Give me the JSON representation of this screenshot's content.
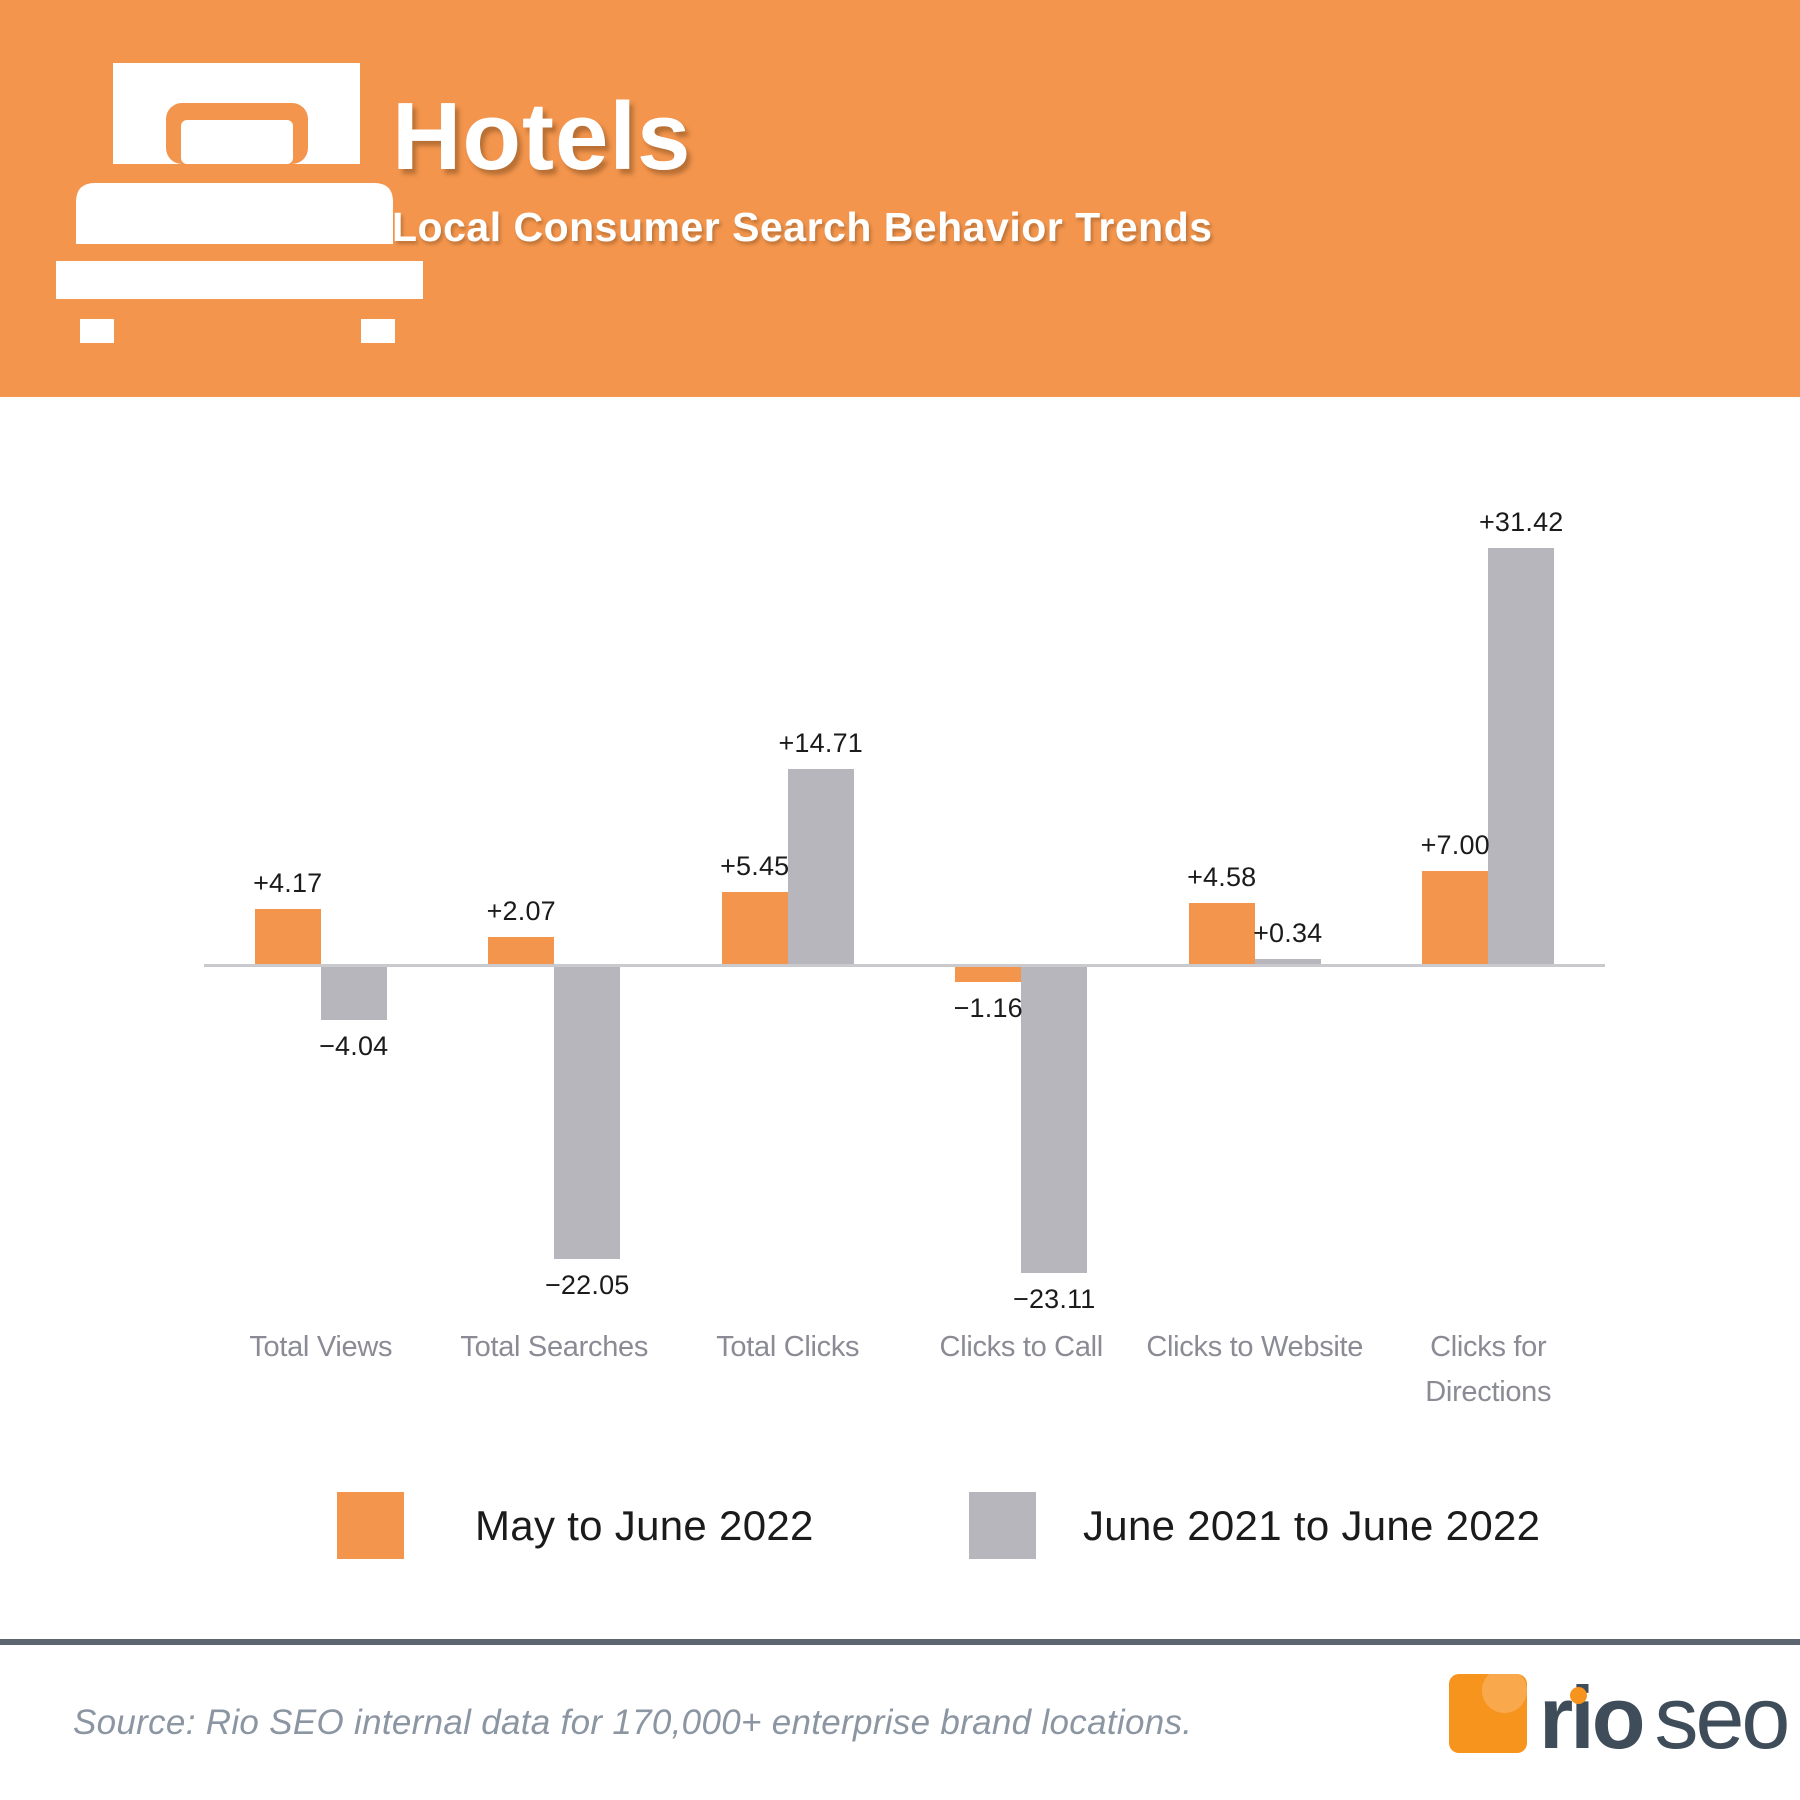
{
  "header": {
    "title": "Hotels",
    "subtitle": "Local Consumer Search Behavior Trends",
    "icon": "bed-icon",
    "bg_color": "#F3954D",
    "text_color": "#FFFFFF"
  },
  "chart_data": {
    "type": "bar",
    "title": "Hotels — Local Consumer Search Behavior Trends",
    "categories": [
      "Total Views",
      "Total Searches",
      "Total Clicks",
      "Clicks to Call",
      "Clicks to Website",
      "Clicks for Directions"
    ],
    "category_label_lines": [
      [
        "Total Views"
      ],
      [
        "Total Searches"
      ],
      [
        "Total Clicks"
      ],
      [
        "Clicks to Call"
      ],
      [
        "Clicks to Website"
      ],
      [
        "Clicks for",
        "Directions"
      ]
    ],
    "series": [
      {
        "name": "May to June 2022",
        "color": "#F3954D",
        "values": [
          4.17,
          2.07,
          5.45,
          -1.16,
          4.58,
          7.0
        ],
        "labels": [
          "+4.17",
          "+2.07",
          "+5.45",
          "−1.16",
          "+4.58",
          "+7.00"
        ]
      },
      {
        "name": "June 2021 to June 2022",
        "color": "#B7B6BC",
        "values": [
          -4.04,
          -22.05,
          14.71,
          -23.11,
          0.34,
          31.42
        ],
        "labels": [
          "−4.04",
          "−22.05",
          "+14.71",
          "−23.11",
          "+0.34",
          "+31.42"
        ]
      }
    ],
    "ylim": [
      -23.11,
      31.42
    ],
    "grid": false,
    "legend_position": "bottom",
    "axis_color": "#C9C9CE",
    "value_label_color": "#1B1B1B",
    "category_label_color": "#8B8B95"
  },
  "legend": {
    "items": [
      {
        "label": "May to June 2022",
        "color": "#F3954D"
      },
      {
        "label": "June 2021 to June 2022",
        "color": "#B7B6BC"
      }
    ]
  },
  "footer": {
    "source": "Source: Rio SEO internal data for 170,000+ enterprise brand locations.",
    "divider_color": "#5B6670",
    "logo": {
      "brand_bold": "rio",
      "brand_light": "seo",
      "square_color": "#F7941E",
      "bubble_color": "#F9A94C",
      "text_color": "#3E4D59"
    }
  }
}
